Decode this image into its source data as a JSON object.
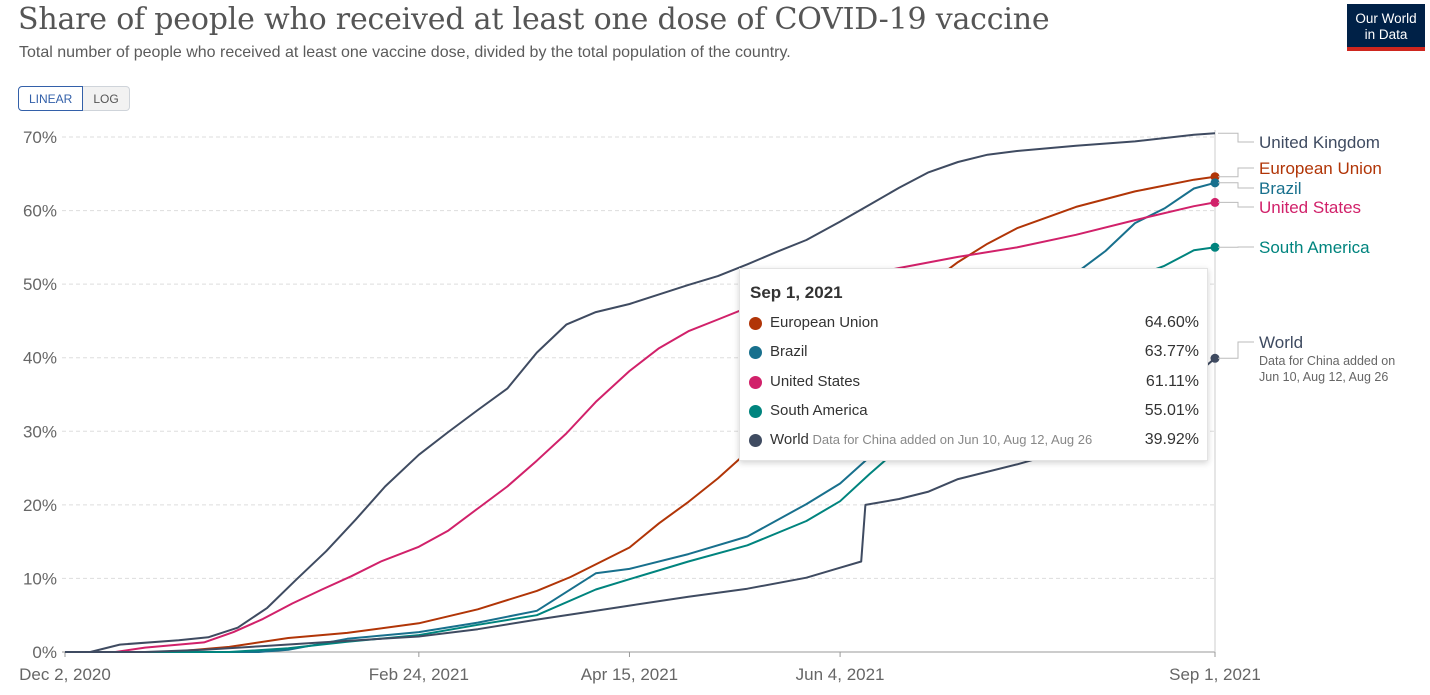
{
  "header": {
    "title": "Share of people who received at least one dose of COVID-19 vaccine",
    "subtitle": "Total number of people who received at least one vaccine dose, divided by the total population of the country.",
    "logo_line1": "Our World",
    "logo_line2": "in Data"
  },
  "scale_toggle": {
    "linear": "LINEAR",
    "log": "LOG",
    "selected": "LINEAR"
  },
  "chart_data": {
    "type": "line",
    "title": "Share of people who received at least one dose of COVID-19 vaccine",
    "subtitle": "Total number of people who received at least one vaccine dose, divided by the total population of the country.",
    "x_start": "2020-12-02",
    "x_end": "2021-09-01",
    "ylim": [
      0,
      70
    ],
    "y_ticks": [
      0,
      10,
      20,
      30,
      40,
      50,
      60,
      70
    ],
    "y_tick_labels": [
      "0%",
      "10%",
      "20%",
      "30%",
      "40%",
      "50%",
      "60%",
      "70%"
    ],
    "x_ticks": [
      "2020-12-02",
      "2021-02-24",
      "2021-04-15",
      "2021-06-04",
      "2021-09-01"
    ],
    "x_tick_labels": [
      "Dec 2, 2020",
      "Feb 24, 2021",
      "Apr 15, 2021",
      "Jun 4, 2021",
      "Sep 1, 2021"
    ],
    "grid": "horizontal dashed",
    "series": [
      {
        "name": "United Kingdom",
        "color": "#3f4b61",
        "points": [
          [
            "2020-12-02",
            0
          ],
          [
            "2020-12-08",
            0
          ],
          [
            "2020-12-15",
            1.0
          ],
          [
            "2020-12-29",
            1.6
          ],
          [
            "2021-01-05",
            2.0
          ],
          [
            "2021-01-12",
            3.3
          ],
          [
            "2021-01-19",
            6.0
          ],
          [
            "2021-01-26",
            9.9
          ],
          [
            "2021-02-02",
            13.7
          ],
          [
            "2021-02-09",
            18.0
          ],
          [
            "2021-02-16",
            22.5
          ],
          [
            "2021-02-24",
            26.8
          ],
          [
            "2021-03-03",
            29.9
          ],
          [
            "2021-03-10",
            32.9
          ],
          [
            "2021-03-17",
            35.8
          ],
          [
            "2021-03-24",
            40.7
          ],
          [
            "2021-03-31",
            44.5
          ],
          [
            "2021-04-07",
            46.2
          ],
          [
            "2021-04-15",
            47.3
          ],
          [
            "2021-04-22",
            48.6
          ],
          [
            "2021-04-29",
            49.9
          ],
          [
            "2021-05-06",
            51.1
          ],
          [
            "2021-05-13",
            52.7
          ],
          [
            "2021-05-20",
            54.4
          ],
          [
            "2021-05-27",
            56.0
          ],
          [
            "2021-06-04",
            58.5
          ],
          [
            "2021-06-11",
            60.8
          ],
          [
            "2021-06-18",
            63.1
          ],
          [
            "2021-06-25",
            65.2
          ],
          [
            "2021-07-02",
            66.6
          ],
          [
            "2021-07-09",
            67.6
          ],
          [
            "2021-07-16",
            68.1
          ],
          [
            "2021-07-30",
            68.8
          ],
          [
            "2021-08-13",
            69.4
          ],
          [
            "2021-08-27",
            70.3
          ],
          [
            "2021-09-01",
            70.5
          ]
        ]
      },
      {
        "name": "European Union",
        "color": "#b13507",
        "points": [
          [
            "2020-12-02",
            0
          ],
          [
            "2020-12-27",
            0
          ],
          [
            "2021-01-10",
            0.7
          ],
          [
            "2021-01-24",
            1.9
          ],
          [
            "2021-02-07",
            2.6
          ],
          [
            "2021-02-24",
            3.9
          ],
          [
            "2021-03-10",
            5.8
          ],
          [
            "2021-03-24",
            8.3
          ],
          [
            "2021-04-01",
            10.2
          ],
          [
            "2021-04-15",
            14.2
          ],
          [
            "2021-04-22",
            17.5
          ],
          [
            "2021-04-29",
            20.4
          ],
          [
            "2021-05-06",
            23.6
          ],
          [
            "2021-05-13",
            27.2
          ],
          [
            "2021-05-20",
            30.8
          ],
          [
            "2021-05-27",
            34.5
          ],
          [
            "2021-06-04",
            38.5
          ],
          [
            "2021-06-11",
            42.5
          ],
          [
            "2021-06-18",
            46.4
          ],
          [
            "2021-06-25",
            50.0
          ],
          [
            "2021-07-02",
            53.0
          ],
          [
            "2021-07-09",
            55.5
          ],
          [
            "2021-07-16",
            57.6
          ],
          [
            "2021-07-30",
            60.5
          ],
          [
            "2021-08-13",
            62.6
          ],
          [
            "2021-08-27",
            64.2
          ],
          [
            "2021-09-01",
            64.6
          ]
        ]
      },
      {
        "name": "Brazil",
        "color": "#18708d",
        "points": [
          [
            "2020-12-02",
            0
          ],
          [
            "2021-01-17",
            0
          ],
          [
            "2021-01-24",
            0.3
          ],
          [
            "2021-02-07",
            1.8
          ],
          [
            "2021-02-24",
            2.7
          ],
          [
            "2021-03-10",
            4.0
          ],
          [
            "2021-03-24",
            5.6
          ],
          [
            "2021-04-07",
            10.7
          ],
          [
            "2021-04-15",
            11.3
          ],
          [
            "2021-04-29",
            13.3
          ],
          [
            "2021-05-13",
            15.7
          ],
          [
            "2021-05-27",
            20.1
          ],
          [
            "2021-06-04",
            22.9
          ],
          [
            "2021-06-11",
            26.5
          ],
          [
            "2021-06-18",
            30.2
          ],
          [
            "2021-06-25",
            34.1
          ],
          [
            "2021-07-02",
            37.4
          ],
          [
            "2021-07-09",
            40.5
          ],
          [
            "2021-07-16",
            44.0
          ],
          [
            "2021-07-23",
            47.5
          ],
          [
            "2021-07-30",
            51.5
          ],
          [
            "2021-08-06",
            54.5
          ],
          [
            "2021-08-13",
            58.3
          ],
          [
            "2021-08-20",
            60.3
          ],
          [
            "2021-08-27",
            63.0
          ],
          [
            "2021-09-01",
            63.77
          ]
        ]
      },
      {
        "name": "United States",
        "color": "#d1216a",
        "points": [
          [
            "2020-12-02",
            0
          ],
          [
            "2020-12-14",
            0
          ],
          [
            "2020-12-21",
            0.6
          ],
          [
            "2021-01-04",
            1.3
          ],
          [
            "2021-01-11",
            2.7
          ],
          [
            "2021-01-18",
            4.5
          ],
          [
            "2021-01-25",
            6.6
          ],
          [
            "2021-02-01",
            8.5
          ],
          [
            "2021-02-08",
            10.3
          ],
          [
            "2021-02-15",
            12.3
          ],
          [
            "2021-02-24",
            14.3
          ],
          [
            "2021-03-03",
            16.5
          ],
          [
            "2021-03-10",
            19.5
          ],
          [
            "2021-03-17",
            22.5
          ],
          [
            "2021-03-24",
            26.0
          ],
          [
            "2021-03-31",
            29.7
          ],
          [
            "2021-04-07",
            34.0
          ],
          [
            "2021-04-15",
            38.2
          ],
          [
            "2021-04-22",
            41.3
          ],
          [
            "2021-04-29",
            43.6
          ],
          [
            "2021-05-06",
            45.2
          ],
          [
            "2021-05-13",
            46.8
          ],
          [
            "2021-05-20",
            48.3
          ],
          [
            "2021-05-27",
            49.5
          ],
          [
            "2021-06-04",
            50.6
          ],
          [
            "2021-06-18",
            52.2
          ],
          [
            "2021-07-02",
            53.7
          ],
          [
            "2021-07-16",
            55.0
          ],
          [
            "2021-07-30",
            56.7
          ],
          [
            "2021-08-13",
            58.7
          ],
          [
            "2021-08-27",
            60.6
          ],
          [
            "2021-09-01",
            61.11
          ]
        ]
      },
      {
        "name": "South America",
        "color": "#00847e",
        "points": [
          [
            "2020-12-02",
            0
          ],
          [
            "2021-01-10",
            0
          ],
          [
            "2021-01-24",
            0.5
          ],
          [
            "2021-02-07",
            1.4
          ],
          [
            "2021-02-24",
            2.3
          ],
          [
            "2021-03-10",
            3.7
          ],
          [
            "2021-03-24",
            5.0
          ],
          [
            "2021-04-07",
            8.5
          ],
          [
            "2021-04-15",
            9.9
          ],
          [
            "2021-04-29",
            12.3
          ],
          [
            "2021-05-13",
            14.5
          ],
          [
            "2021-05-27",
            17.8
          ],
          [
            "2021-06-04",
            20.5
          ],
          [
            "2021-06-11",
            24.2
          ],
          [
            "2021-06-18",
            27.7
          ],
          [
            "2021-06-25",
            31.0
          ],
          [
            "2021-07-02",
            34.3
          ],
          [
            "2021-07-09",
            37.2
          ],
          [
            "2021-07-16",
            40.2
          ],
          [
            "2021-07-23",
            43.3
          ],
          [
            "2021-07-30",
            46.5
          ],
          [
            "2021-08-06",
            49.0
          ],
          [
            "2021-08-13",
            51.0
          ],
          [
            "2021-08-20",
            52.5
          ],
          [
            "2021-08-27",
            54.6
          ],
          [
            "2021-09-01",
            55.01
          ]
        ]
      },
      {
        "name": "World",
        "color": "#3f4b61",
        "points": [
          [
            "2020-12-02",
            0
          ],
          [
            "2020-12-21",
            0
          ],
          [
            "2021-01-04",
            0.3
          ],
          [
            "2021-01-18",
            0.8
          ],
          [
            "2021-02-01",
            1.3
          ],
          [
            "2021-02-24",
            2.1
          ],
          [
            "2021-03-10",
            3.1
          ],
          [
            "2021-03-24",
            4.4
          ],
          [
            "2021-04-07",
            5.6
          ],
          [
            "2021-04-15",
            6.3
          ],
          [
            "2021-04-29",
            7.5
          ],
          [
            "2021-05-13",
            8.6
          ],
          [
            "2021-05-27",
            10.1
          ],
          [
            "2021-06-03",
            11.3
          ],
          [
            "2021-06-09",
            12.3
          ],
          [
            "2021-06-10",
            20.0
          ],
          [
            "2021-06-18",
            20.8
          ],
          [
            "2021-06-25",
            21.8
          ],
          [
            "2021-07-02",
            23.5
          ],
          [
            "2021-07-16",
            25.5
          ],
          [
            "2021-07-30",
            27.8
          ],
          [
            "2021-08-12",
            30.2
          ],
          [
            "2021-08-20",
            33.5
          ],
          [
            "2021-08-27",
            37.5
          ],
          [
            "2021-09-01",
            39.92
          ]
        ]
      }
    ],
    "end_labels": [
      {
        "name": "United Kingdom",
        "color": "#3f4b61"
      },
      {
        "name": "European Union",
        "color": "#b13507"
      },
      {
        "name": "Brazil",
        "color": "#18708d"
      },
      {
        "name": "United States",
        "color": "#d1216a"
      },
      {
        "name": "South America",
        "color": "#00847e"
      },
      {
        "name": "World",
        "color": "#3f4b61",
        "note_line1": "Data for China added on",
        "note_line2": "Jun 10, Aug 12, Aug 26"
      }
    ]
  },
  "tooltip": {
    "date": "Sep 1, 2021",
    "rows": [
      {
        "name": "European Union",
        "value": "64.60%",
        "color": "#b13507",
        "note": ""
      },
      {
        "name": "Brazil",
        "value": "63.77%",
        "color": "#18708d",
        "note": ""
      },
      {
        "name": "United States",
        "value": "61.11%",
        "color": "#d1216a",
        "note": ""
      },
      {
        "name": "South America",
        "value": "55.01%",
        "color": "#00847e",
        "note": ""
      },
      {
        "name": "World",
        "value": "39.92%",
        "color": "#3f4b61",
        "note": "Data for China added on Jun 10, Aug 12, Aug 26"
      }
    ]
  }
}
